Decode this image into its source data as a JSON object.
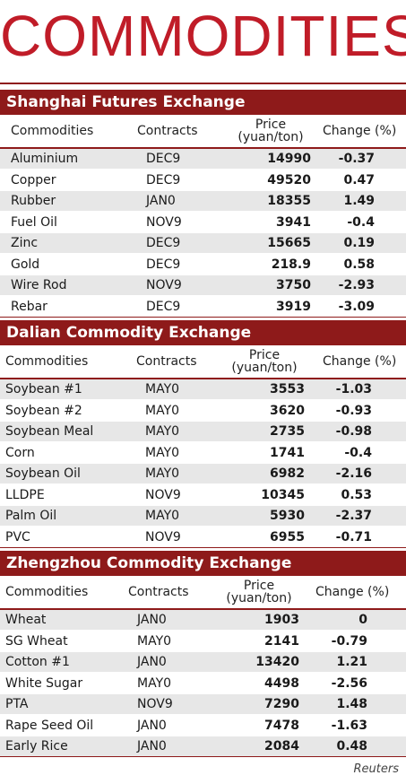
{
  "title": "COMMODITIES",
  "columns": {
    "commodities": "Commodities",
    "contracts": "Contracts",
    "price_line1": "Price",
    "price_line2": "(yuan/ton)",
    "change": "Change (%)"
  },
  "sections": [
    {
      "name": "Shanghai Futures Exchange",
      "rows": [
        {
          "commodity": "Aluminium",
          "contract": "DEC9",
          "price": "14990",
          "change": "-0.37"
        },
        {
          "commodity": "Copper",
          "contract": "DEC9",
          "price": "49520",
          "change": "0.47"
        },
        {
          "commodity": "Rubber",
          "contract": "JAN0",
          "price": "18355",
          "change": "1.49"
        },
        {
          "commodity": "Fuel Oil",
          "contract": "NOV9",
          "price": "3941",
          "change": "-0.4"
        },
        {
          "commodity": "Zinc",
          "contract": "DEC9",
          "price": "15665",
          "change": "0.19"
        },
        {
          "commodity": "Gold",
          "contract": "DEC9",
          "price": "218.9",
          "change": "0.58"
        },
        {
          "commodity": "Wire Rod",
          "contract": "NOV9",
          "price": "3750",
          "change": "-2.93"
        },
        {
          "commodity": "Rebar",
          "contract": "DEC9",
          "price": "3919",
          "change": "-3.09"
        }
      ]
    },
    {
      "name": "Dalian Commodity Exchange",
      "rows": [
        {
          "commodity": "Soybean #1",
          "contract": "MAY0",
          "price": "3553",
          "change": "-1.03"
        },
        {
          "commodity": "Soybean #2",
          "contract": "MAY0",
          "price": "3620",
          "change": "-0.93"
        },
        {
          "commodity": "Soybean Meal",
          "contract": "MAY0",
          "price": "2735",
          "change": "-0.98"
        },
        {
          "commodity": "Corn",
          "contract": "MAY0",
          "price": "1741",
          "change": "-0.4"
        },
        {
          "commodity": "Soybean Oil",
          "contract": "MAY0",
          "price": "6982",
          "change": "-2.16"
        },
        {
          "commodity": "LLDPE",
          "contract": "NOV9",
          "price": "10345",
          "change": "0.53"
        },
        {
          "commodity": "Palm Oil",
          "contract": "MAY0",
          "price": "5930",
          "change": "-2.37"
        },
        {
          "commodity": "PVC",
          "contract": "NOV9",
          "price": "6955",
          "change": "-0.71"
        }
      ]
    },
    {
      "name": "Zhengzhou Commodity Exchange",
      "rows": [
        {
          "commodity": "Wheat",
          "contract": "JAN0",
          "price": "1903",
          "change": "0"
        },
        {
          "commodity": "SG Wheat",
          "contract": "MAY0",
          "price": "2141",
          "change": "-0.79"
        },
        {
          "commodity": "Cotton #1",
          "contract": "JAN0",
          "price": "13420",
          "change": "1.21"
        },
        {
          "commodity": "White Sugar",
          "contract": "MAY0",
          "price": "4498",
          "change": "-2.56"
        },
        {
          "commodity": "PTA",
          "contract": "NOV9",
          "price": "7290",
          "change": "1.48"
        },
        {
          "commodity": "Rape Seed Oil",
          "contract": "JAN0",
          "price": "7478",
          "change": "-1.63"
        },
        {
          "commodity": "Early Rice",
          "contract": "JAN0",
          "price": "2084",
          "change": "0.48"
        }
      ]
    }
  ],
  "source": "Reuters",
  "colors": {
    "accent": "#8e1a1a",
    "title": "#c01c28",
    "row_shade": "#e7e7e7"
  }
}
